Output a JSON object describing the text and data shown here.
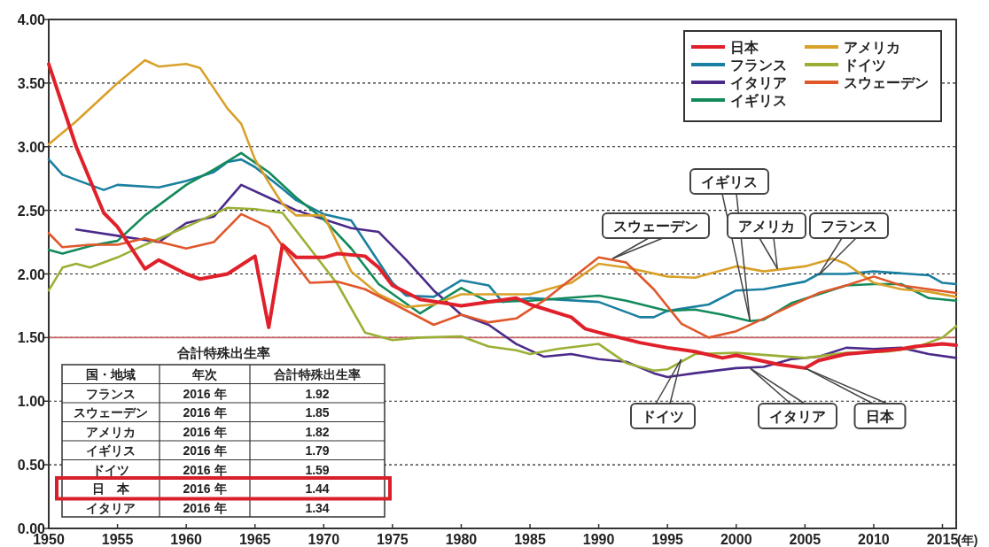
{
  "chart_data": {
    "type": "line",
    "xlabel": "(年)",
    "xlim": [
      1950,
      2016
    ],
    "xticks": [
      1950,
      1955,
      1960,
      1965,
      1970,
      1975,
      1980,
      1985,
      1990,
      1995,
      2000,
      2005,
      2010,
      2015
    ],
    "ylim": [
      0,
      4
    ],
    "yticks": [
      {
        "value": 0,
        "label": "0.00"
      },
      {
        "value": 0.5,
        "label": "0.50"
      },
      {
        "value": 1,
        "label": "1.00"
      },
      {
        "value": 1.5,
        "label": "1.50"
      },
      {
        "value": 2,
        "label": "2.00"
      },
      {
        "value": 2.5,
        "label": "2.50"
      },
      {
        "value": 3,
        "label": "3.00"
      },
      {
        "value": 3.5,
        "label": "3.50"
      },
      {
        "value": 4,
        "label": "4.00"
      }
    ],
    "grid": "y",
    "legend": "top right",
    "marker": "none",
    "line_style": "solid",
    "ref_lines": [
      {
        "axis": "y",
        "value": 1.5,
        "color": "#c86464"
      }
    ],
    "series": [
      {
        "name": "日本",
        "color": "#e0202a",
        "x": [
          1950,
          1952,
          1954,
          1955,
          1957,
          1958,
          1960,
          1961,
          1963,
          1965,
          1966,
          1967,
          1968,
          1970,
          1971,
          1973,
          1974,
          1975,
          1977,
          1980,
          1984,
          1985,
          1988,
          1989,
          1990,
          1993,
          1995,
          1997,
          1999,
          2000,
          2003,
          2005,
          2006,
          2008,
          2010,
          2012,
          2013,
          2015,
          2016
        ],
        "values": [
          3.65,
          3.0,
          2.48,
          2.37,
          2.04,
          2.11,
          2.0,
          1.96,
          2.0,
          2.14,
          1.58,
          2.23,
          2.13,
          2.13,
          2.16,
          2.14,
          2.05,
          1.91,
          1.8,
          1.75,
          1.81,
          1.76,
          1.66,
          1.57,
          1.54,
          1.46,
          1.42,
          1.39,
          1.34,
          1.36,
          1.29,
          1.26,
          1.32,
          1.37,
          1.39,
          1.41,
          1.43,
          1.45,
          1.44
        ]
      },
      {
        "name": "フランス",
        "color": "#1a7fa0",
        "x": [
          1950,
          1951,
          1953,
          1954,
          1955,
          1958,
          1960,
          1962,
          1963,
          1964,
          1965,
          1967,
          1968,
          1970,
          1972,
          1975,
          1976,
          1978,
          1980,
          1982,
          1983,
          1985,
          1990,
          1993,
          1994,
          1995,
          1998,
          2000,
          2002,
          2005,
          2006,
          2008,
          2010,
          2014,
          2015,
          2016
        ],
        "values": [
          2.9,
          2.78,
          2.7,
          2.66,
          2.7,
          2.68,
          2.73,
          2.8,
          2.88,
          2.9,
          2.84,
          2.67,
          2.58,
          2.47,
          2.42,
          1.93,
          1.83,
          1.82,
          1.95,
          1.91,
          1.78,
          1.81,
          1.78,
          1.66,
          1.66,
          1.71,
          1.76,
          1.87,
          1.88,
          1.94,
          2.0,
          2.0,
          2.02,
          1.99,
          1.93,
          1.92
        ]
      },
      {
        "name": "イタリア",
        "color": "#4b2a8a",
        "x": [
          1952,
          1955,
          1958,
          1960,
          1962,
          1964,
          1966,
          1968,
          1970,
          1972,
          1974,
          1976,
          1978,
          1980,
          1982,
          1984,
          1986,
          1988,
          1990,
          1992,
          1994,
          1995,
          1997,
          2000,
          2002,
          2004,
          2006,
          2008,
          2010,
          2012,
          2014,
          2016
        ],
        "values": [
          2.35,
          2.3,
          2.25,
          2.4,
          2.45,
          2.7,
          2.6,
          2.5,
          2.43,
          2.36,
          2.33,
          2.11,
          1.87,
          1.68,
          1.6,
          1.45,
          1.35,
          1.37,
          1.33,
          1.31,
          1.22,
          1.19,
          1.22,
          1.26,
          1.27,
          1.33,
          1.35,
          1.42,
          1.41,
          1.42,
          1.37,
          1.34
        ]
      },
      {
        "name": "イギリス",
        "color": "#138a5a",
        "x": [
          1950,
          1951,
          1953,
          1955,
          1957,
          1960,
          1962,
          1964,
          1966,
          1968,
          1970,
          1972,
          1974,
          1977,
          1980,
          1982,
          1985,
          1990,
          1992,
          1995,
          1997,
          1999,
          2001,
          2002,
          2004,
          2006,
          2008,
          2010,
          2012,
          2014,
          2016
        ],
        "values": [
          2.19,
          2.16,
          2.22,
          2.26,
          2.46,
          2.7,
          2.82,
          2.95,
          2.8,
          2.6,
          2.43,
          2.2,
          1.92,
          1.69,
          1.89,
          1.78,
          1.79,
          1.83,
          1.79,
          1.71,
          1.72,
          1.68,
          1.63,
          1.64,
          1.77,
          1.84,
          1.91,
          1.92,
          1.92,
          1.81,
          1.79
        ]
      },
      {
        "name": "アメリカ",
        "color": "#d9a02a",
        "x": [
          1950,
          1952,
          1954,
          1955,
          1957,
          1958,
          1960,
          1961,
          1963,
          1964,
          1965,
          1966,
          1967,
          1968,
          1970,
          1972,
          1974,
          1976,
          1978,
          1980,
          1985,
          1988,
          1990,
          1992,
          1995,
          1997,
          2000,
          2002,
          2005,
          2007,
          2008,
          2010,
          2012,
          2014,
          2016
        ],
        "values": [
          3.02,
          3.2,
          3.4,
          3.5,
          3.68,
          3.63,
          3.65,
          3.62,
          3.3,
          3.18,
          2.9,
          2.72,
          2.55,
          2.46,
          2.46,
          2.02,
          1.84,
          1.74,
          1.76,
          1.84,
          1.84,
          1.93,
          2.08,
          2.05,
          1.98,
          1.97,
          2.06,
          2.02,
          2.06,
          2.12,
          2.08,
          1.93,
          1.88,
          1.86,
          1.82
        ]
      },
      {
        "name": "ドイツ",
        "color": "#9ab034",
        "x": [
          1950,
          1951,
          1952,
          1953,
          1955,
          1957,
          1960,
          1963,
          1965,
          1967,
          1969,
          1971,
          1973,
          1975,
          1977,
          1980,
          1982,
          1984,
          1985,
          1987,
          1990,
          1992,
          1994,
          1995,
          1997,
          2000,
          2005,
          2008,
          2011,
          2013,
          2015,
          2016
        ],
        "values": [
          1.87,
          2.05,
          2.08,
          2.05,
          2.13,
          2.23,
          2.37,
          2.52,
          2.51,
          2.48,
          2.2,
          1.92,
          1.54,
          1.48,
          1.5,
          1.51,
          1.43,
          1.4,
          1.37,
          1.41,
          1.45,
          1.3,
          1.24,
          1.25,
          1.37,
          1.38,
          1.34,
          1.38,
          1.39,
          1.42,
          1.5,
          1.59
        ]
      },
      {
        "name": "スウェーデン",
        "color": "#e0572a",
        "x": [
          1950,
          1951,
          1953,
          1955,
          1957,
          1960,
          1962,
          1964,
          1966,
          1968,
          1969,
          1971,
          1973,
          1975,
          1978,
          1980,
          1982,
          1984,
          1986,
          1988,
          1990,
          1992,
          1994,
          1996,
          1998,
          2000,
          2002,
          2004,
          2006,
          2008,
          2010,
          2012,
          2014,
          2016
        ],
        "values": [
          2.32,
          2.21,
          2.23,
          2.23,
          2.28,
          2.2,
          2.25,
          2.47,
          2.37,
          2.07,
          1.93,
          1.94,
          1.88,
          1.77,
          1.6,
          1.68,
          1.62,
          1.65,
          1.79,
          1.96,
          2.13,
          2.09,
          1.88,
          1.61,
          1.5,
          1.55,
          1.65,
          1.75,
          1.85,
          1.91,
          1.98,
          1.91,
          1.88,
          1.85
        ]
      }
    ],
    "annotations": [
      {
        "text": "スウェーデン",
        "x": 1991,
        "y": 2.12
      },
      {
        "text": "イギリス",
        "x": 2001,
        "y": 1.63
      },
      {
        "text": "アメリカ",
        "x": 2003,
        "y": 2.04
      },
      {
        "text": "フランス",
        "x": 2006,
        "y": 1.99
      },
      {
        "text": "ドイツ",
        "x": 1996,
        "y": 1.33
      },
      {
        "text": "イタリア",
        "x": 2001,
        "y": 1.26
      },
      {
        "text": "日本",
        "x": 2005,
        "y": 1.26
      },
      "合計特殊出生率",
      "国・地域",
      "年次",
      "合計特殊出生率",
      "フランス",
      "2016 年",
      "1.92",
      "スウェーデン",
      "2016 年",
      "1.85",
      "アメリカ",
      "2016 年",
      "1.82",
      "イギリス",
      "2016 年",
      "1.79",
      "ドイツ",
      "2016 年",
      "1.59",
      "日　本",
      "2016 年",
      "1.44",
      "イタリア",
      "2016 年",
      "1.34"
    ]
  }
}
